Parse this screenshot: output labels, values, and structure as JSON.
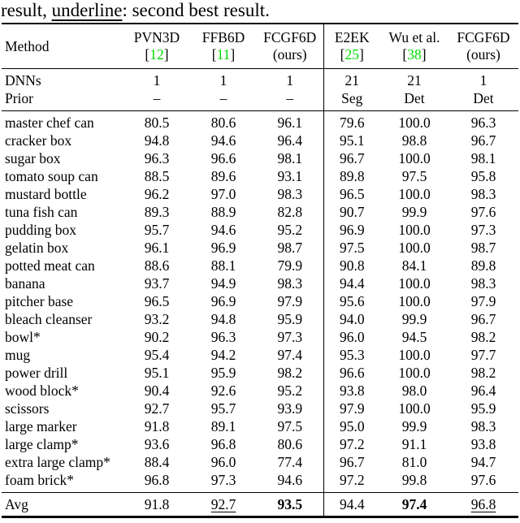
{
  "caption": {
    "prefix": "result, ",
    "underlined_word": "underline",
    "suffix": ": second best result."
  },
  "colors": {
    "citation_green": "#00dd00",
    "text": "#000000",
    "background": "#ffffff"
  },
  "table": {
    "bracket_open": "[",
    "bracket_close": "]",
    "method_header": "Method",
    "columns": [
      {
        "name": "PVN3D",
        "cite": "12"
      },
      {
        "name": "FFB6D",
        "cite": "11"
      },
      {
        "name": "FCGF6D",
        "sub": "(ours)"
      },
      {
        "name": "E2EK",
        "cite": "25"
      },
      {
        "name": "Wu et al.",
        "cite": "38"
      },
      {
        "name": "FCGF6D",
        "sub": "(ours)"
      }
    ],
    "meta_rows": [
      {
        "label": "DNNs",
        "values": [
          "1",
          "1",
          "1",
          "21",
          "21",
          "1"
        ]
      },
      {
        "label": "Prior",
        "values": [
          "–",
          "–",
          "–",
          "Seg",
          "Det",
          "Det"
        ]
      }
    ],
    "rows": [
      {
        "name": "master chef can",
        "values": [
          "80.5",
          "80.6",
          "96.1",
          "79.6",
          "100.0",
          "96.3"
        ]
      },
      {
        "name": "cracker box",
        "values": [
          "94.8",
          "94.6",
          "96.4",
          "95.1",
          "98.8",
          "96.7"
        ]
      },
      {
        "name": "sugar box",
        "values": [
          "96.3",
          "96.6",
          "98.1",
          "96.7",
          "100.0",
          "98.1"
        ]
      },
      {
        "name": "tomato soup can",
        "values": [
          "88.5",
          "89.6",
          "93.1",
          "89.8",
          "97.5",
          "95.8"
        ]
      },
      {
        "name": "mustard bottle",
        "values": [
          "96.2",
          "97.0",
          "98.3",
          "96.5",
          "100.0",
          "98.3"
        ]
      },
      {
        "name": "tuna fish can",
        "values": [
          "89.3",
          "88.9",
          "82.8",
          "90.7",
          "99.9",
          "97.6"
        ]
      },
      {
        "name": "pudding box",
        "values": [
          "95.7",
          "94.6",
          "95.2",
          "96.9",
          "100.0",
          "97.3"
        ]
      },
      {
        "name": "gelatin box",
        "values": [
          "96.1",
          "96.9",
          "98.7",
          "97.5",
          "100.0",
          "98.7"
        ]
      },
      {
        "name": "potted meat can",
        "values": [
          "88.6",
          "88.1",
          "79.9",
          "90.8",
          "84.1",
          "89.8"
        ]
      },
      {
        "name": "banana",
        "values": [
          "93.7",
          "94.9",
          "98.3",
          "94.4",
          "100.0",
          "98.3"
        ]
      },
      {
        "name": "pitcher base",
        "values": [
          "96.5",
          "96.9",
          "97.9",
          "95.6",
          "100.0",
          "97.9"
        ]
      },
      {
        "name": "bleach cleanser",
        "values": [
          "93.2",
          "94.8",
          "95.9",
          "94.0",
          "99.9",
          "96.7"
        ]
      },
      {
        "name": "bowl*",
        "values": [
          "90.2",
          "96.3",
          "97.3",
          "96.0",
          "94.5",
          "98.2"
        ]
      },
      {
        "name": "mug",
        "values": [
          "95.4",
          "94.2",
          "97.4",
          "95.3",
          "100.0",
          "97.7"
        ]
      },
      {
        "name": "power drill",
        "values": [
          "95.1",
          "95.9",
          "98.2",
          "96.6",
          "100.0",
          "98.2"
        ]
      },
      {
        "name": "wood block*",
        "values": [
          "90.4",
          "92.6",
          "95.2",
          "93.8",
          "98.0",
          "96.4"
        ]
      },
      {
        "name": "scissors",
        "values": [
          "92.7",
          "95.7",
          "93.9",
          "97.9",
          "100.0",
          "95.9"
        ]
      },
      {
        "name": "large marker",
        "values": [
          "91.8",
          "89.1",
          "97.5",
          "95.0",
          "99.9",
          "98.3"
        ]
      },
      {
        "name": "large clamp*",
        "values": [
          "93.6",
          "96.8",
          "80.6",
          "97.2",
          "91.1",
          "93.8"
        ]
      },
      {
        "name": "extra large clamp*",
        "values": [
          "88.4",
          "96.0",
          "77.4",
          "96.7",
          "81.0",
          "94.7"
        ]
      },
      {
        "name": "foam brick*",
        "values": [
          "96.8",
          "97.3",
          "94.6",
          "97.2",
          "99.8",
          "97.6"
        ]
      }
    ],
    "avg": {
      "label": "Avg",
      "values": [
        {
          "text": "91.8",
          "style": "plain"
        },
        {
          "text": "92.7",
          "style": "underline"
        },
        {
          "text": "93.5",
          "style": "bold"
        },
        {
          "text": "94.4",
          "style": "plain"
        },
        {
          "text": "97.4",
          "style": "bold"
        },
        {
          "text": "96.8",
          "style": "underline"
        }
      ]
    }
  }
}
